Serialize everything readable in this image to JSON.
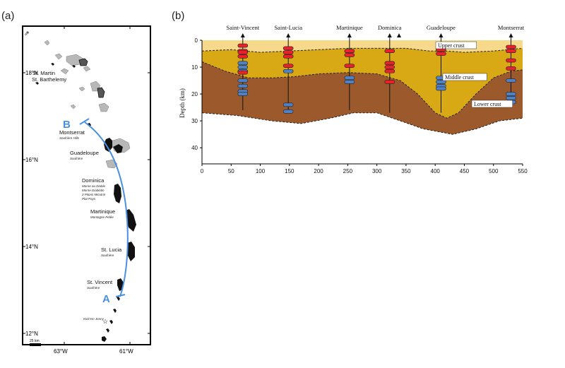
{
  "panel_a": {
    "label": "(a)",
    "lat_labels": [
      "18°N",
      "16°N",
      "14°N",
      "12°N"
    ],
    "lon_labels": [
      "63°W",
      "61°W"
    ],
    "scale_label": "25 km",
    "profile_start": "A",
    "profile_end": "B",
    "colors": {
      "profile": "#4a90e2",
      "land_volcanic": "#111111",
      "land_other": "#b8b8b8",
      "frame": "#000000"
    },
    "islands": [
      {
        "name": "St. Martin",
        "volcano": ""
      },
      {
        "name": "St. Barthelemy",
        "volcano": ""
      },
      {
        "name": "Montserrat",
        "volcano": "Soufrière Hills"
      },
      {
        "name": "Guadeloupe",
        "volcano": "Soufrière"
      },
      {
        "name": "Dominica",
        "volcano": "Morne au Diable"
      },
      {
        "name": "",
        "volcano": "Morne Diablotin"
      },
      {
        "name": "",
        "volcano": "3 Pitons Micotrin"
      },
      {
        "name": "",
        "volcano": "Plat Pays"
      },
      {
        "name": "Martinique",
        "volcano": "Montagne Pelée"
      },
      {
        "name": "St. Lucia",
        "volcano": "Soufrière"
      },
      {
        "name": "St. Vincent",
        "volcano": "Soufrière"
      },
      {
        "name": "",
        "volcano": "Kick'em Jenny"
      }
    ]
  },
  "panel_b": {
    "label": "(b)",
    "ylabel": "Depth (km)",
    "x_ticks": [
      "0",
      "50",
      "100",
      "150",
      "200",
      "250",
      "300",
      "350",
      "400",
      "450",
      "500",
      "550"
    ],
    "y_ticks": [
      "0",
      "10",
      "20",
      "30",
      "40"
    ],
    "layers": [
      {
        "name": "Upper crust",
        "color": "#f7d98b"
      },
      {
        "name": "Middle crust",
        "color": "#d8a915"
      },
      {
        "name": "Lower crust",
        "color": "#9c5a2c"
      }
    ],
    "stations": [
      {
        "name": "Saint-Vincent",
        "x": 70,
        "depth_bottom": 26
      },
      {
        "name": "Saint-Lucia",
        "x": 148,
        "depth_bottom": 27
      },
      {
        "name": "Martinique",
        "x": 253,
        "depth_bottom": 26
      },
      {
        "name": "Dominica",
        "x": 322,
        "depth_bottom": 27
      },
      {
        "name": "Guadeloupe",
        "x": 410,
        "depth_bottom": 27
      },
      {
        "name": "Montserrat",
        "x": 530,
        "depth_bottom": 23
      }
    ],
    "extra_marker_x": 338,
    "colors": {
      "melt_red": "#e8212b",
      "melt_blue": "#4f81c7",
      "boundary": "#222222"
    }
  }
}
